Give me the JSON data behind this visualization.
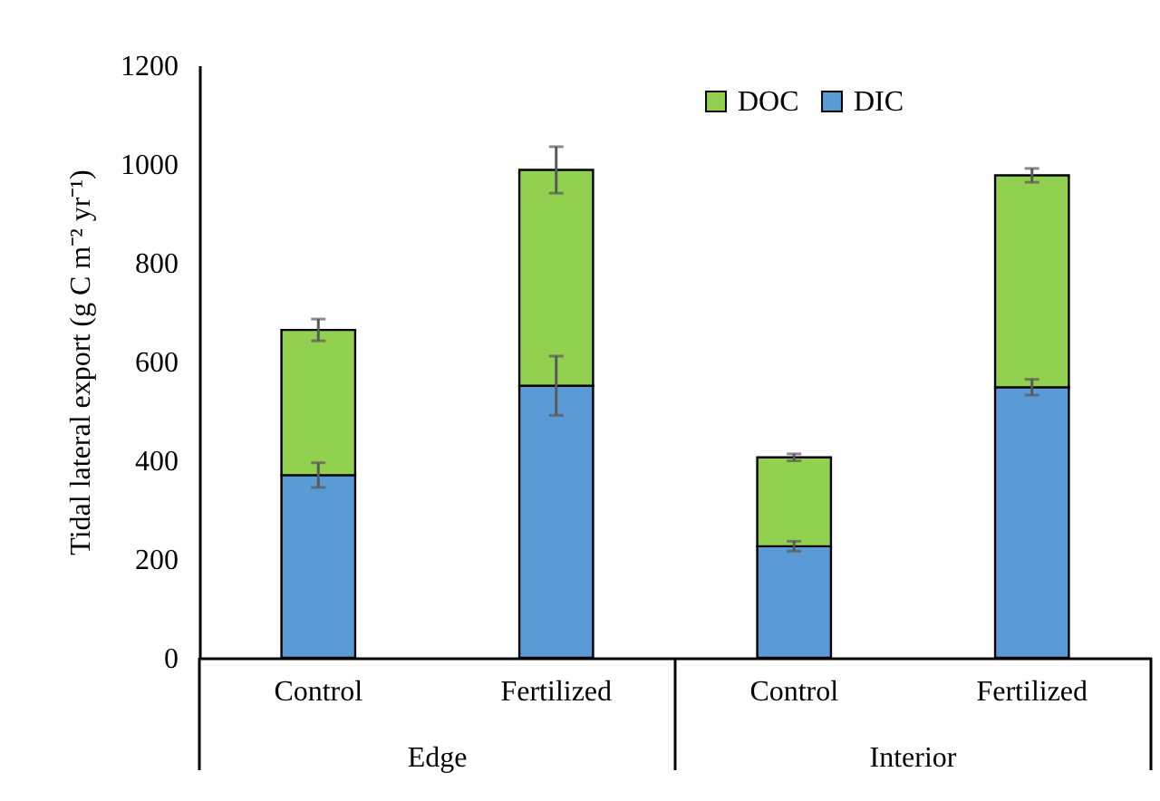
{
  "chart_data": {
    "type": "bar",
    "stacked": true,
    "ylabel": "Tidal lateral export (g C m⁻² yr⁻¹)",
    "categories": [
      "Control",
      "Fertilized",
      "Control",
      "Fertilized"
    ],
    "series": [
      {
        "name": "DIC",
        "color": "#5b9bd5",
        "values": [
          370,
          551,
          226,
          548
        ],
        "errors": [
          25,
          60,
          10,
          16
        ]
      },
      {
        "name": "DOC",
        "color": "#92d050",
        "values": [
          294,
          437,
          180,
          429
        ],
        "errors": [
          22,
          47,
          7,
          14
        ]
      }
    ],
    "ylim": [
      0,
      1200
    ],
    "yticks": [
      0,
      200,
      400,
      600,
      800,
      1000,
      1200
    ],
    "grid": false,
    "legend": "top right",
    "annotations": [
      "Edge",
      "Interior"
    ]
  }
}
